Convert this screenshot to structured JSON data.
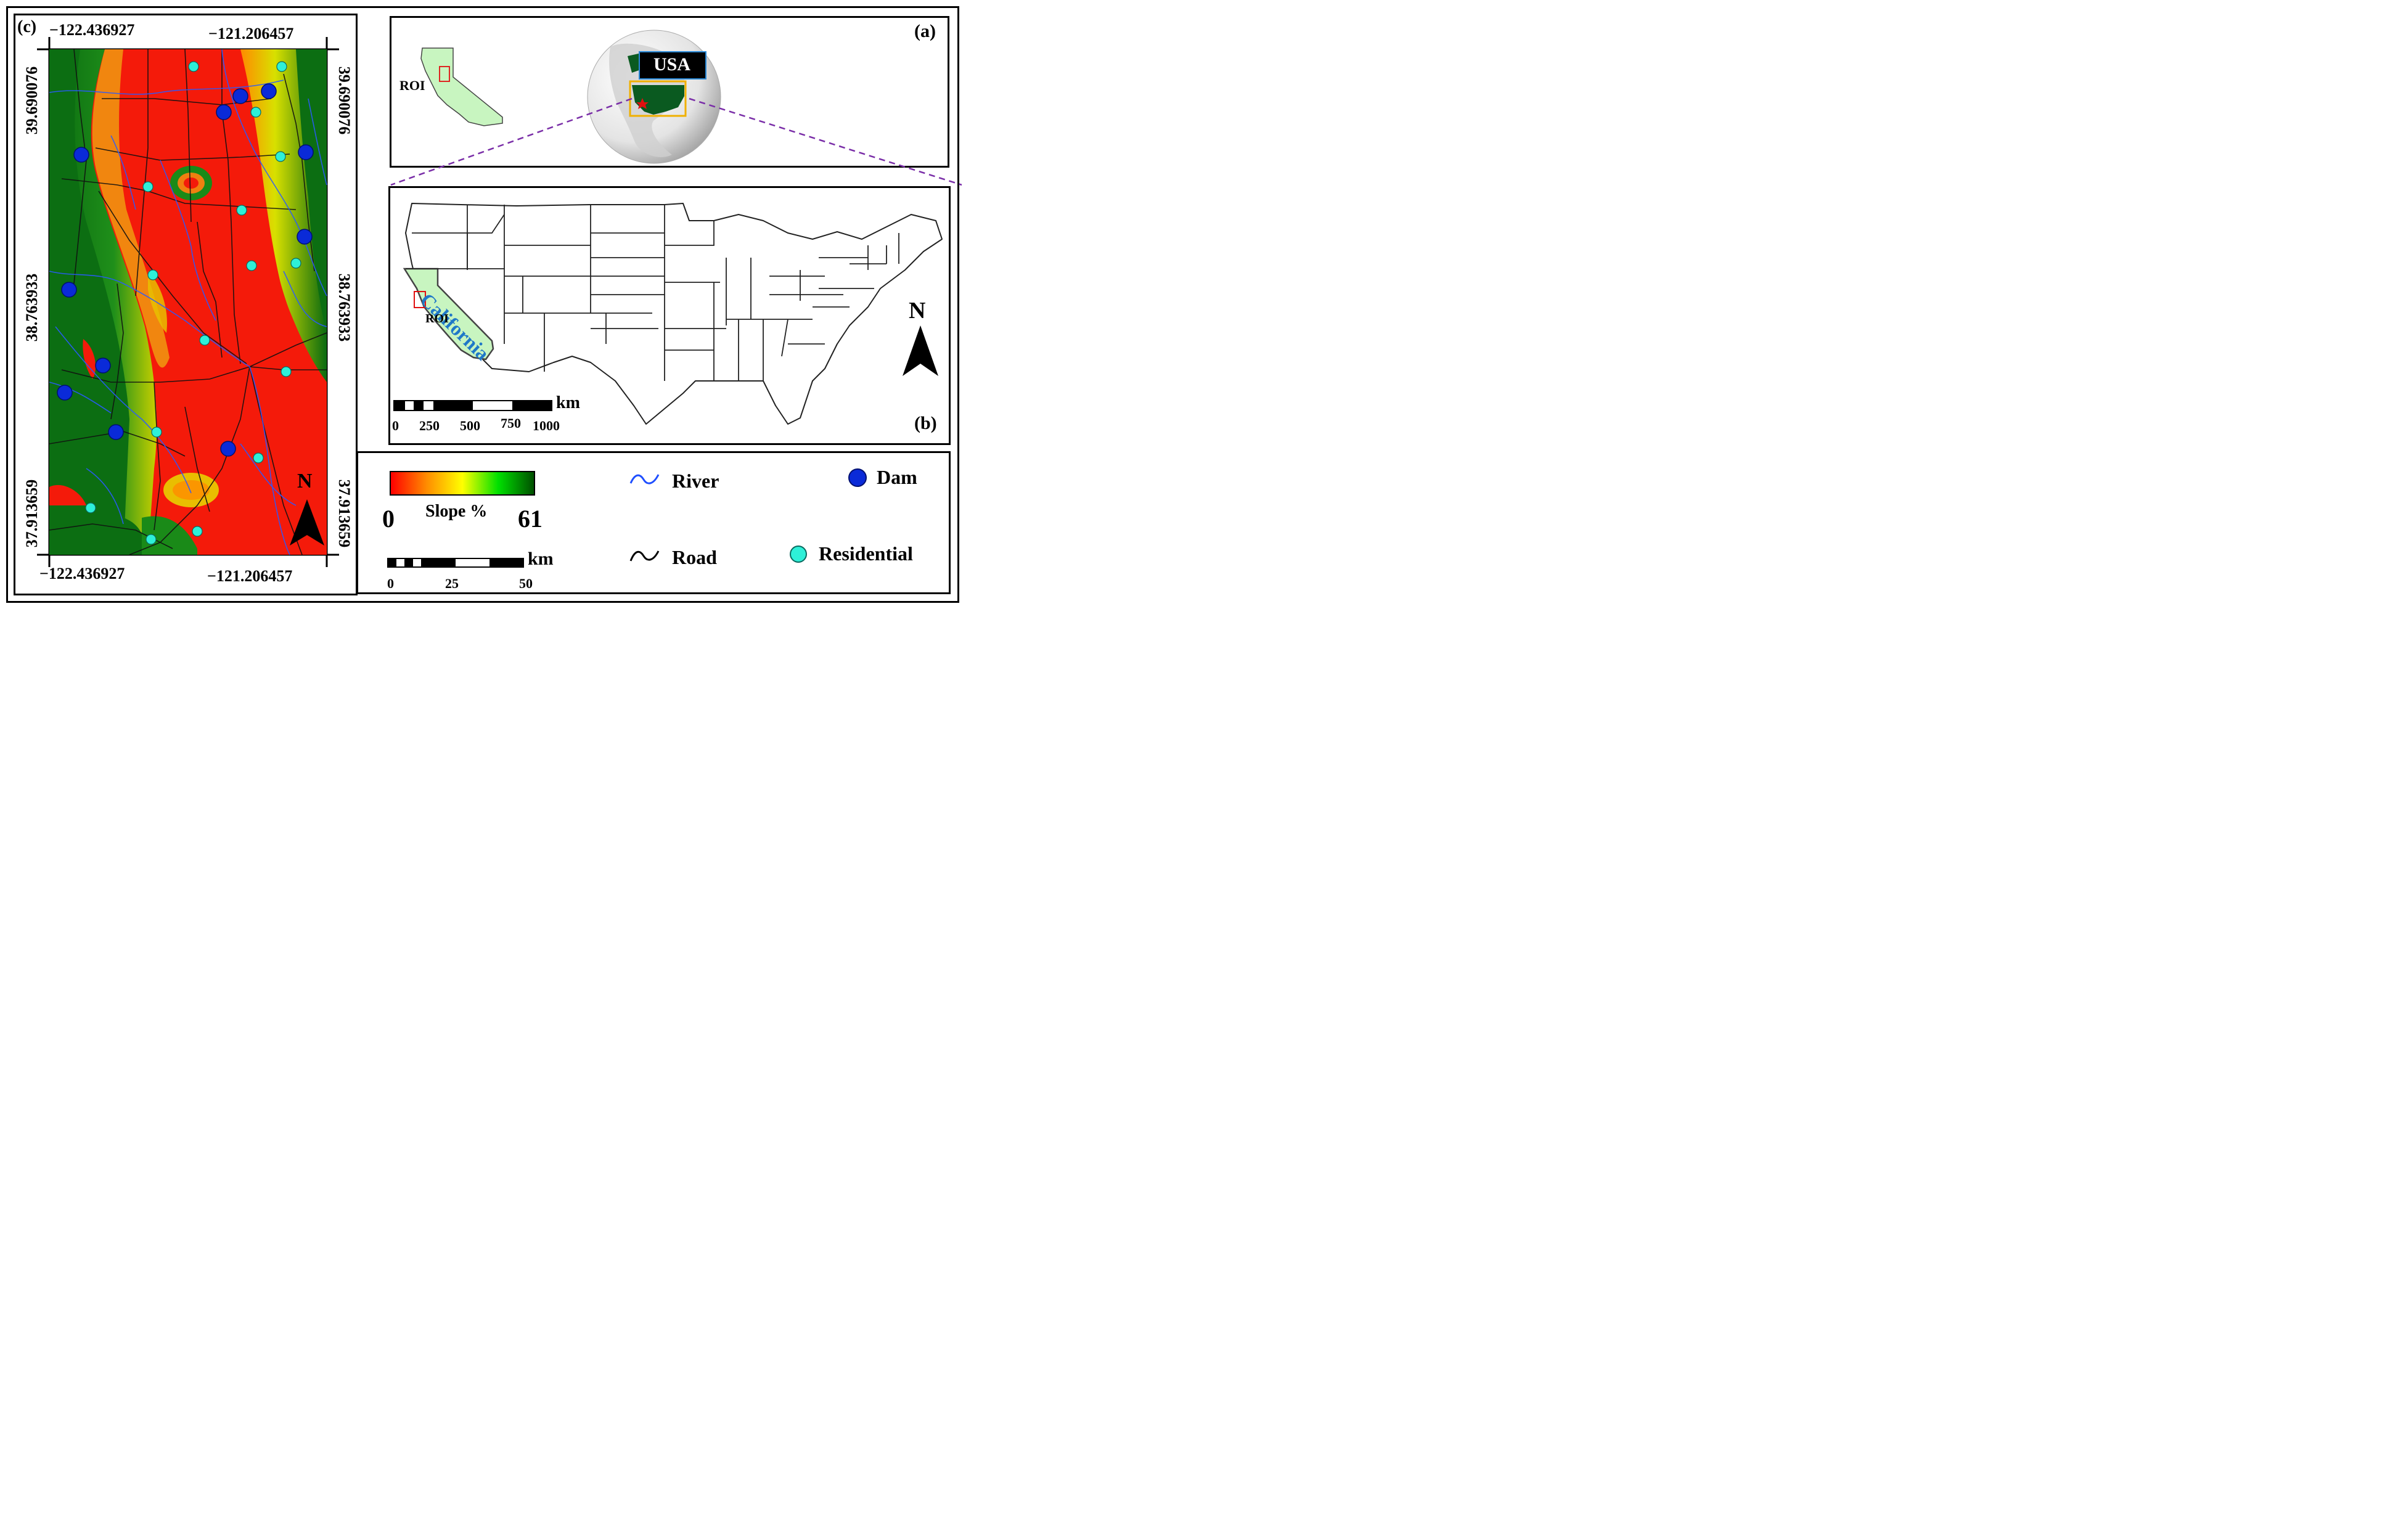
{
  "panel_c": {
    "label": "(c)",
    "lon_west": "−122.436927",
    "lon_east": "−121.206457",
    "lat_north": "39.690076",
    "lat_mid": "38.763933",
    "lat_south": "37.913659",
    "north_label": "N"
  },
  "panel_a": {
    "label": "(a)",
    "roi_label": "ROI",
    "country_label": "USA"
  },
  "panel_b": {
    "label": "(b)",
    "state_label": "California",
    "roi_label": "ROI",
    "north_label": "N",
    "scale_unit": "km",
    "scale_ticks": [
      "0",
      "250",
      "500",
      "750",
      "1000"
    ]
  },
  "legend": {
    "slope_title": "Slope %",
    "slope_min": "0",
    "slope_max": "61",
    "slope_colors": [
      "#ff0000",
      "#ff8c00",
      "#ffff00",
      "#00e000",
      "#005000"
    ],
    "scale_unit": "km",
    "scale_ticks": [
      "0",
      "25",
      "50"
    ],
    "items": [
      {
        "label": "River",
        "color": "#1f4fff"
      },
      {
        "label": "Dam",
        "color": "#0a2ad8"
      },
      {
        "label": "Road",
        "color": "#000000"
      },
      {
        "label": "Residential",
        "color": "#2ef0d8"
      }
    ]
  }
}
